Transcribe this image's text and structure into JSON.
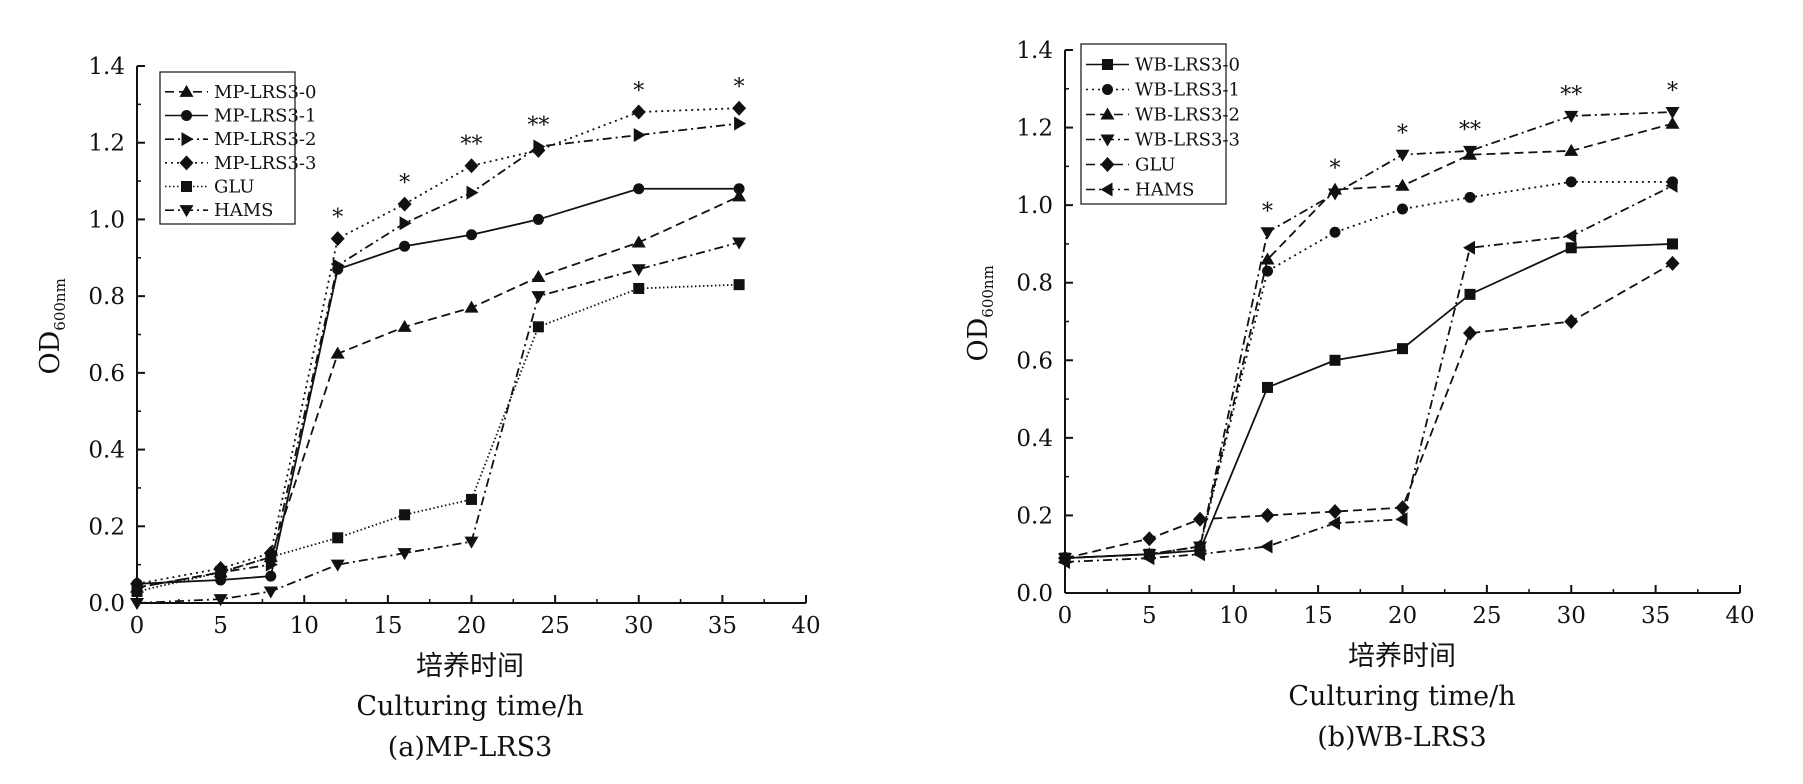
{
  "chart_data": [
    {
      "type": "line",
      "caption": "(a)MP-LRS3",
      "ylabel": "OD",
      "ylabel_sub": "600nm",
      "xlabel_cn": "培养时间",
      "xlabel": "Culturing time/h",
      "xlim": [
        0,
        40
      ],
      "ylim": [
        0.0,
        1.4
      ],
      "xticks": [
        "0",
        "5",
        "10",
        "15",
        "20",
        "25",
        "30",
        "35",
        "40"
      ],
      "yticks": [
        "0.0",
        "0.2",
        "0.4",
        "0.6",
        "0.8",
        "1.0",
        "1.2",
        "1.4"
      ],
      "legend_position": "top-left",
      "x": [
        0,
        5,
        8,
        12,
        16,
        20,
        24,
        30,
        36
      ],
      "series": [
        {
          "name": "MP-LRS3-0",
          "marker": "triangle-up",
          "dash": "dash",
          "values": [
            0.04,
            0.08,
            0.12,
            0.65,
            0.72,
            0.77,
            0.85,
            0.94,
            1.06
          ]
        },
        {
          "name": "MP-LRS3-1",
          "marker": "circle",
          "dash": "solid",
          "values": [
            0.05,
            0.06,
            0.07,
            0.87,
            0.93,
            0.96,
            1.0,
            1.08,
            1.08
          ]
        },
        {
          "name": "MP-LRS3-2",
          "marker": "triangle-right",
          "dash": "dashdot",
          "values": [
            0.04,
            0.08,
            0.1,
            0.88,
            0.99,
            1.07,
            1.19,
            1.22,
            1.25
          ]
        },
        {
          "name": "MP-LRS3-3",
          "marker": "diamond",
          "dash": "dot",
          "values": [
            0.05,
            0.09,
            0.13,
            0.95,
            1.04,
            1.14,
            1.18,
            1.28,
            1.29
          ]
        },
        {
          "name": "GLU",
          "marker": "square",
          "dash": "densedot",
          "values": [
            0.03,
            0.08,
            0.12,
            0.17,
            0.23,
            0.27,
            0.72,
            0.82,
            0.83
          ]
        },
        {
          "name": "HAMS",
          "marker": "triangle-down",
          "dash": "dashdot",
          "values": [
            0.0,
            0.01,
            0.03,
            0.1,
            0.13,
            0.16,
            0.8,
            0.87,
            0.94
          ]
        }
      ],
      "annotations": [
        {
          "x": 12,
          "y": 0.95,
          "text": "*"
        },
        {
          "x": 16,
          "y": 1.04,
          "text": "*"
        },
        {
          "x": 20,
          "y": 1.14,
          "text": "**"
        },
        {
          "x": 24,
          "y": 1.19,
          "text": "**"
        },
        {
          "x": 30,
          "y": 1.28,
          "text": "*"
        },
        {
          "x": 36,
          "y": 1.29,
          "text": "*"
        }
      ]
    },
    {
      "type": "line",
      "caption": "(b)WB-LRS3",
      "ylabel": "OD",
      "ylabel_sub": "600nm",
      "xlabel_cn": "培养时间",
      "xlabel": "Culturing time/h",
      "xlim": [
        0,
        40
      ],
      "ylim": [
        0.0,
        1.4
      ],
      "xticks": [
        "0",
        "5",
        "10",
        "15",
        "20",
        "25",
        "30",
        "35",
        "40"
      ],
      "yticks": [
        "0.0",
        "0.2",
        "0.4",
        "0.6",
        "0.8",
        "1.0",
        "1.2",
        "1.4"
      ],
      "legend_position": "top-left",
      "x": [
        0,
        5,
        8,
        12,
        16,
        20,
        24,
        30,
        36
      ],
      "series": [
        {
          "name": "WB-LRS3-0",
          "marker": "square",
          "dash": "solid",
          "values": [
            0.09,
            0.1,
            0.11,
            0.53,
            0.6,
            0.63,
            0.77,
            0.89,
            0.9
          ]
        },
        {
          "name": "WB-LRS3-1",
          "marker": "circle",
          "dash": "dot",
          "values": [
            0.09,
            0.1,
            0.12,
            0.83,
            0.93,
            0.99,
            1.02,
            1.06,
            1.06
          ]
        },
        {
          "name": "WB-LRS3-2",
          "marker": "triangle-up",
          "dash": "dash",
          "values": [
            0.09,
            0.1,
            0.12,
            0.86,
            1.04,
            1.05,
            1.13,
            1.14,
            1.21
          ]
        },
        {
          "name": "WB-LRS3-3",
          "marker": "triangle-down",
          "dash": "dashdot",
          "values": [
            0.09,
            0.1,
            0.12,
            0.93,
            1.03,
            1.13,
            1.14,
            1.23,
            1.24
          ]
        },
        {
          "name": "GLU",
          "marker": "diamond",
          "dash": "dash",
          "values": [
            0.09,
            0.14,
            0.19,
            0.2,
            0.21,
            0.22,
            0.67,
            0.7,
            0.85
          ]
        },
        {
          "name": "HAMS",
          "marker": "triangle-left",
          "dash": "dashdot",
          "values": [
            0.08,
            0.09,
            0.1,
            0.12,
            0.18,
            0.19,
            0.89,
            0.92,
            1.05
          ]
        }
      ],
      "annotations": [
        {
          "x": 12,
          "y": 0.93,
          "text": "*"
        },
        {
          "x": 16,
          "y": 1.04,
          "text": "*"
        },
        {
          "x": 20,
          "y": 1.13,
          "text": "*"
        },
        {
          "x": 24,
          "y": 1.14,
          "text": "**"
        },
        {
          "x": 30,
          "y": 1.23,
          "text": "**"
        },
        {
          "x": 36,
          "y": 1.24,
          "text": "*"
        }
      ]
    }
  ]
}
